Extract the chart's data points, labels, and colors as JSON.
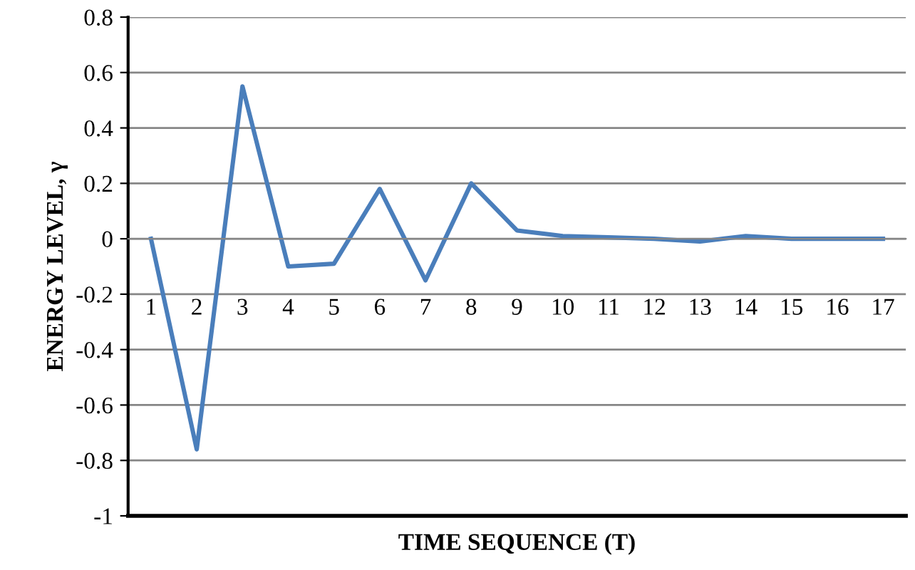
{
  "chart_data": {
    "type": "line",
    "xlabel": "TIME SEQUENCE (T)",
    "ylabel": "ENERGY LEVEL, γ",
    "categories": [
      "1",
      "2",
      "3",
      "4",
      "5",
      "6",
      "7",
      "8",
      "9",
      "10",
      "11",
      "12",
      "13",
      "14",
      "15",
      "16",
      "17"
    ],
    "series": [
      {
        "color": "#4a7ebb",
        "values": [
          0,
          -0.76,
          0.55,
          -0.1,
          -0.09,
          0.18,
          -0.15,
          0.2,
          0.03,
          0.01,
          0.005,
          0.0,
          -0.01,
          0.01,
          0.0,
          0.0,
          0.0
        ]
      }
    ],
    "ylim": [
      -1,
      0.8
    ],
    "yticks": [
      {
        "value": -1,
        "label": "-1"
      },
      {
        "value": -0.8,
        "label": "-0.8"
      },
      {
        "value": -0.6,
        "label": "-0.6"
      },
      {
        "value": -0.4,
        "label": "-0.4"
      },
      {
        "value": -0.2,
        "label": "-0.2"
      },
      0,
      0.2,
      0.4,
      0.6,
      0.8
    ],
    "grid": "y",
    "marker": "none",
    "line_style": "solid"
  }
}
